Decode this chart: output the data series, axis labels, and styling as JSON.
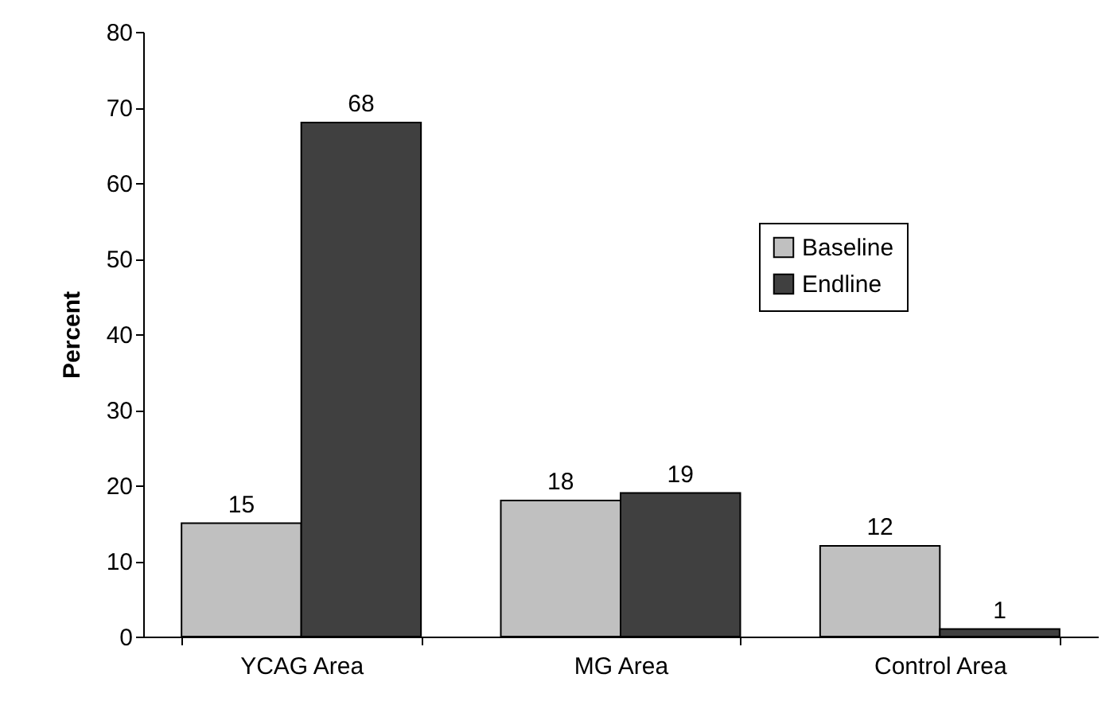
{
  "chart_data": {
    "type": "bar",
    "ylabel": "Percent",
    "categories": [
      "YCAG Area",
      "MG Area",
      "Control Area"
    ],
    "series": [
      {
        "name": "Baseline",
        "color": "#c0c0c0",
        "values": [
          15,
          18,
          12
        ]
      },
      {
        "name": "Endline",
        "color": "#404040",
        "values": [
          68,
          19,
          1
        ]
      }
    ],
    "ylim": [
      0,
      80
    ],
    "yticks": [
      0,
      10,
      20,
      30,
      40,
      50,
      60,
      70,
      80
    ],
    "data_labels": true,
    "legend": "top right"
  }
}
